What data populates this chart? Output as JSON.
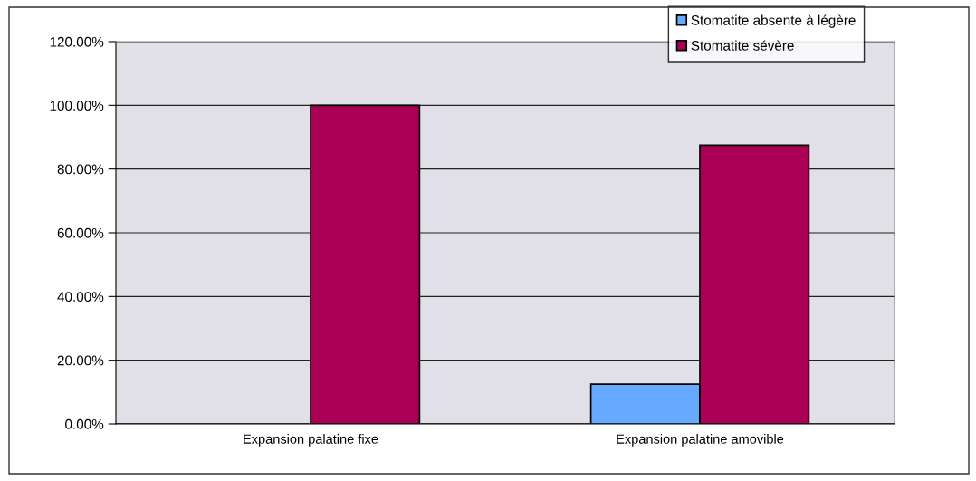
{
  "chart_data": {
    "type": "bar",
    "categories": [
      "Expansion palatine fixe",
      "Expansion palatine amovible"
    ],
    "series": [
      {
        "name": "Stomatite absente à légère",
        "color": "#66aaff",
        "values": [
          null,
          12.5
        ]
      },
      {
        "name": "Stomatite sévère",
        "color": "#aa0055",
        "values": [
          100,
          87.5
        ]
      }
    ],
    "ylim": [
      0,
      120
    ],
    "yticks": [
      {
        "value": 0,
        "label": "0.00%"
      },
      {
        "value": 20,
        "label": "20.00%"
      },
      {
        "value": 40,
        "label": "40.00%"
      },
      {
        "value": 60,
        "label": "60.00%"
      },
      {
        "value": 80,
        "label": "80.00%"
      },
      {
        "value": 100,
        "label": "100.00%"
      },
      {
        "value": 120,
        "label": "120.00%"
      }
    ],
    "grid": "y",
    "legend": "top right"
  }
}
